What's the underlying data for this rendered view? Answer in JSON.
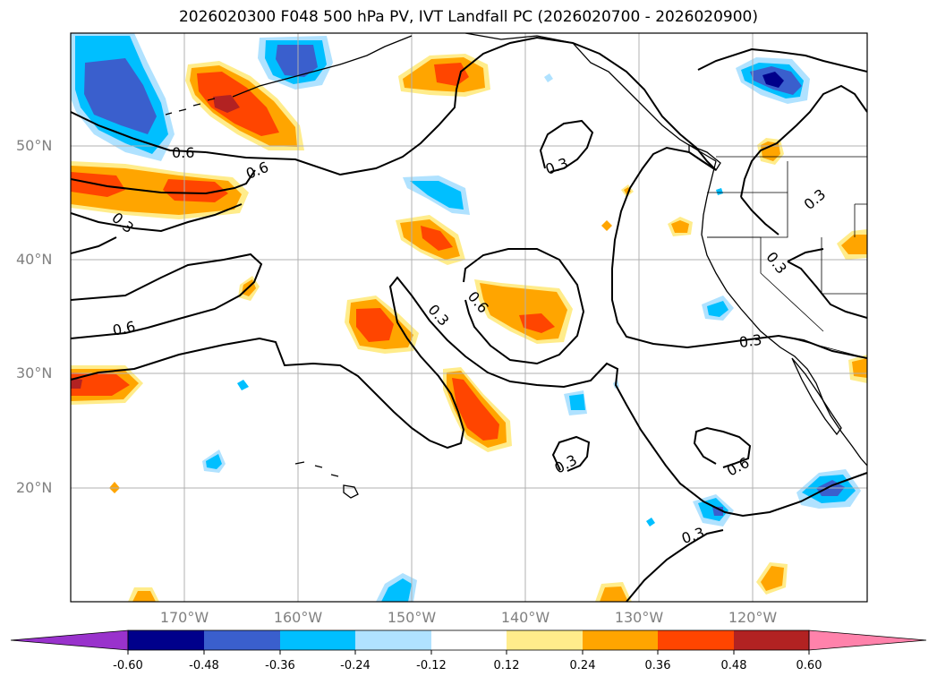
{
  "title": "2026020300 F048 500 hPa PV, IVT Landfall PC (2026020700 - 2026020900)",
  "map": {
    "projection": "PlateCarree",
    "lon_range": [
      -180,
      -110
    ],
    "lat_range": [
      10,
      60
    ],
    "lat_ticks": [
      {
        "label": "50°N",
        "value": 50
      },
      {
        "label": "40°N",
        "value": 40
      },
      {
        "label": "30°N",
        "value": 30
      },
      {
        "label": "20°N",
        "value": 20
      }
    ],
    "lon_ticks": [
      {
        "label": "170°W",
        "value": -170
      },
      {
        "label": "160°W",
        "value": -160
      },
      {
        "label": "150°W",
        "value": -150
      },
      {
        "label": "140°W",
        "value": -140
      },
      {
        "label": "130°W",
        "value": -130
      },
      {
        "label": "120°W",
        "value": -120
      }
    ],
    "gridlines": true,
    "contour_labels": [
      "0.6",
      "0.6",
      "0.3",
      "0.6",
      "0.3",
      "0.6",
      "0.3",
      "0.3",
      "0.3",
      "0.3",
      "0.6",
      "0.3",
      "0.3"
    ],
    "colors": {
      "neg_extend": "#9932cc",
      "n060": "#00008b",
      "n048": "#3a5fcd",
      "n036": "#00bfff",
      "n024": "#b0e2ff",
      "zero": "#ffffff",
      "p012": "#ffec8b",
      "p024": "#ffa500",
      "p036": "#ff4500",
      "p048": "#b22222",
      "pos_extend": "#ff82ab"
    }
  },
  "colorbar": {
    "levels": [
      "-0.60",
      "-0.48",
      "-0.36",
      "-0.24",
      "-0.12",
      "0.12",
      "0.24",
      "0.36",
      "0.48",
      "0.60"
    ],
    "extend": "both"
  }
}
